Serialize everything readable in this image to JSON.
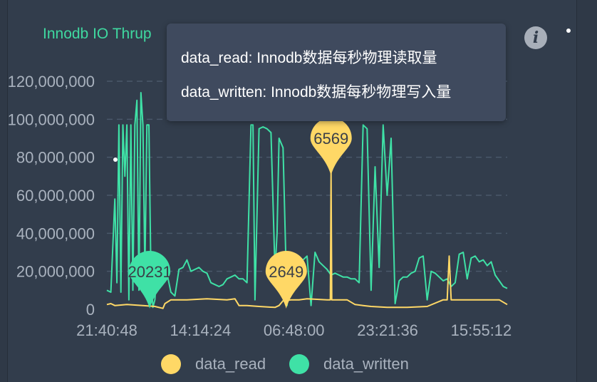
{
  "panel": {
    "title": "Innodb IO Thrup",
    "info_icon": "info-icon"
  },
  "tooltip": {
    "lines": [
      "data_read: Innodb数据每秒物理读取量",
      "data_written: Innodb数据每秒物理写入量"
    ]
  },
  "colors": {
    "background": "#323d4c",
    "data_read": "#ffd866",
    "data_written": "#3fe1a6",
    "axis_text": "#a9b2be",
    "grid": "#4a586a"
  },
  "chart_data": {
    "type": "line",
    "title": "Innodb IO Thrup",
    "xlabel": "",
    "ylabel": "",
    "y_ticks": [
      "0",
      "20,000,000",
      "40,000,000",
      "60,000,000",
      "80,000,000",
      "100,000,000",
      "120,000,000"
    ],
    "ylim": [
      0,
      120000000
    ],
    "x_ticks": [
      "21:40:48",
      "14:14:24",
      "06:48:00",
      "23:21:36",
      "15:55:12"
    ],
    "grid": "horizontal dashed",
    "legend_position": "bottom",
    "series": [
      {
        "name": "data_read",
        "color": "#ffd866",
        "x": [
          0,
          0.01,
          0.02,
          0.05,
          0.09,
          0.12,
          0.14,
          0.145,
          0.16,
          0.18,
          0.2,
          0.25,
          0.3,
          0.32,
          0.33,
          0.35,
          0.38,
          0.42,
          0.43,
          0.44,
          0.46,
          0.48,
          0.5,
          0.55,
          0.6,
          0.62,
          0.64,
          0.66,
          0.7,
          0.75,
          0.8,
          0.84,
          0.85,
          0.855,
          0.86,
          0.9,
          0.95,
          0.98,
          1.0
        ],
        "values": [
          2500000,
          3000000,
          2000000,
          2500000,
          2000000,
          1500000,
          500000,
          3000000,
          5000000,
          5000000,
          5000000,
          5500000,
          5000000,
          5500000,
          2000000,
          2000000,
          1500000,
          1000000,
          2000000,
          4500000,
          5000000,
          5000000,
          5500000,
          5000000,
          5000000,
          2500000,
          2000000,
          1500000,
          1000000,
          1000000,
          1500000,
          5000000,
          5000000,
          28000000,
          5000000,
          5000000,
          5000000,
          5000000,
          2500000
        ],
        "spikes": [
          {
            "at": 0.56,
            "value": 72000000
          }
        ],
        "annotations": [
          {
            "label": "2649",
            "x": 0.448,
            "value": 2649
          },
          {
            "label": "6569",
            "x": 0.56,
            "value": 6569
          }
        ]
      },
      {
        "name": "data_written",
        "color": "#3fe1a6",
        "x": [
          0,
          0.01,
          0.02,
          0.025,
          0.03,
          0.035,
          0.04,
          0.045,
          0.05,
          0.055,
          0.06,
          0.065,
          0.07,
          0.075,
          0.08,
          0.085,
          0.09,
          0.095,
          0.1,
          0.105,
          0.11,
          0.115,
          0.12,
          0.125,
          0.13,
          0.14,
          0.15,
          0.16,
          0.17,
          0.18,
          0.19,
          0.2,
          0.21,
          0.22,
          0.23,
          0.24,
          0.25,
          0.26,
          0.27,
          0.28,
          0.29,
          0.3,
          0.31,
          0.32,
          0.33,
          0.34,
          0.35,
          0.36,
          0.365,
          0.37,
          0.38,
          0.39,
          0.4,
          0.41,
          0.42,
          0.425,
          0.43,
          0.44,
          0.45,
          0.46,
          0.47,
          0.48,
          0.49,
          0.5,
          0.51,
          0.52,
          0.53,
          0.54,
          0.55,
          0.56,
          0.57,
          0.58,
          0.59,
          0.6,
          0.61,
          0.62,
          0.63,
          0.64,
          0.65,
          0.66,
          0.67,
          0.68,
          0.69,
          0.7,
          0.71,
          0.72,
          0.73,
          0.74,
          0.75,
          0.76,
          0.77,
          0.78,
          0.79,
          0.8,
          0.81,
          0.82,
          0.83,
          0.84,
          0.85,
          0.86,
          0.87,
          0.88,
          0.89,
          0.9,
          0.91,
          0.92,
          0.93,
          0.94,
          0.95,
          0.96,
          0.97,
          0.98,
          0.99,
          1.0
        ],
        "values": [
          10000000,
          9000000,
          58000000,
          14000000,
          97000000,
          9000000,
          97000000,
          70000000,
          97000000,
          5000000,
          97000000,
          10000000,
          97000000,
          110000000,
          10000000,
          114000000,
          97000000,
          20000000,
          97000000,
          97000000,
          20000000,
          1000000,
          5000000,
          20000000,
          20000000,
          21000000,
          19000000,
          9000000,
          7000000,
          21000000,
          22000000,
          26000000,
          20000000,
          21000000,
          22000000,
          20000000,
          19000000,
          14000000,
          13000000,
          12000000,
          13000000,
          16000000,
          17000000,
          18000000,
          16000000,
          16000000,
          14000000,
          97000000,
          97000000,
          5000000,
          95000000,
          96000000,
          95000000,
          93000000,
          20000000,
          40000000,
          90000000,
          85000000,
          2000000,
          25000000,
          20000000,
          27000000,
          26000000,
          28000000,
          2000000,
          30000000,
          25000000,
          23000000,
          21000000,
          18000000,
          19000000,
          18000000,
          17000000,
          17000000,
          16000000,
          16000000,
          14000000,
          97000000,
          95000000,
          10000000,
          75000000,
          22000000,
          97000000,
          60000000,
          90000000,
          3000000,
          15000000,
          17000000,
          17000000,
          19000000,
          20000000,
          27000000,
          28000000,
          5000000,
          20000000,
          19000000,
          17000000,
          15000000,
          16000000,
          12000000,
          14000000,
          29000000,
          30000000,
          16000000,
          27000000,
          28000000,
          25000000,
          26000000,
          23000000,
          25000000,
          18000000,
          15000000,
          12000000,
          11000000
        ],
        "annotations": [
          {
            "label": "20231",
            "x": 0.107,
            "value": 20231
          }
        ]
      }
    ]
  }
}
